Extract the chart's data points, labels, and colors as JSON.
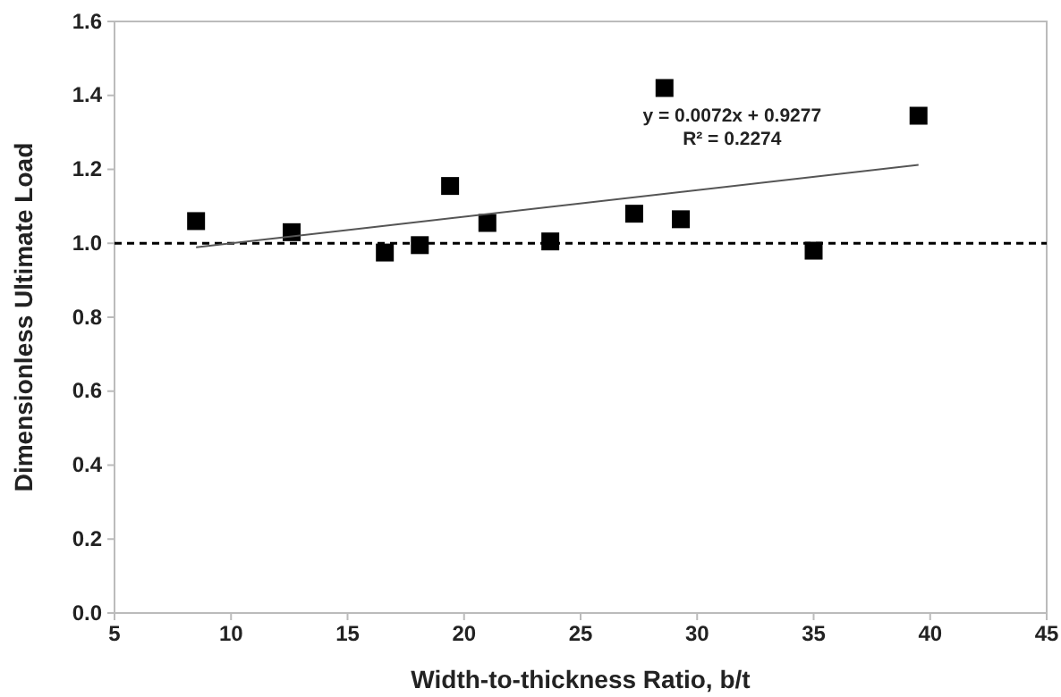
{
  "chart_data": {
    "type": "scatter",
    "xlabel": "Width-to-thickness Ratio, b/t",
    "ylabel": "Dimensionless Ultimate Load",
    "xlim": [
      5,
      45
    ],
    "xticks": [
      5,
      10,
      15,
      20,
      25,
      30,
      35,
      40,
      45
    ],
    "ylim": [
      0,
      1.6
    ],
    "yticks": [
      {
        "value": 0,
        "label": "0.0"
      },
      {
        "value": 0.2,
        "label": "0.2"
      },
      {
        "value": 0.4,
        "label": "0.4"
      },
      {
        "value": 0.6,
        "label": "0.6"
      },
      {
        "value": 0.8,
        "label": "0.8"
      },
      {
        "value": 1,
        "label": "1.0"
      },
      {
        "value": 1.2,
        "label": "1.2"
      },
      {
        "value": 1.4,
        "label": "1.4"
      },
      {
        "value": 1.6,
        "label": "1.6"
      }
    ],
    "grid": false,
    "series": [
      {
        "marker": "square",
        "color": "#000000",
        "x": [
          8.5,
          12.6,
          16.6,
          18.1,
          19.4,
          21,
          23.7,
          27.3,
          28.6,
          29.3,
          35,
          39.5
        ],
        "values": [
          1.06,
          1.03,
          0.975,
          0.995,
          1.155,
          1.055,
          1.005,
          1.08,
          1.42,
          1.065,
          0.98,
          1.345
        ]
      },
      {
        "type": "line",
        "color": "#555555",
        "x": [
          8.5,
          39.5
        ],
        "values": [
          0.989,
          1.212
        ],
        "line_style": "solid"
      }
    ],
    "ref_lines": [
      {
        "axis": "y",
        "value": 1,
        "color": "#000000",
        "line_style": "dashed"
      }
    ],
    "annotations": [
      "y = 0.0072x + 0.9277",
      "R² = 0.2274"
    ]
  }
}
